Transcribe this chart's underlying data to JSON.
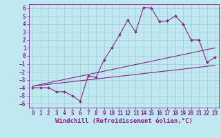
{
  "xlabel": "Windchill (Refroidissement éolien,°C)",
  "x_values": [
    0,
    1,
    2,
    3,
    4,
    5,
    6,
    7,
    8,
    9,
    10,
    11,
    12,
    13,
    14,
    15,
    16,
    17,
    18,
    19,
    20,
    21,
    22,
    23
  ],
  "main_y": [
    -4,
    -4,
    -4,
    -4.5,
    -4.5,
    -5,
    -5.7,
    -2.5,
    -2.7,
    -0.5,
    1.0,
    2.7,
    4.5,
    3.0,
    6.1,
    6.0,
    4.3,
    4.4,
    5.0,
    4.0,
    2.0,
    2.0,
    -0.8,
    -0.2
  ],
  "line1_x": [
    0,
    23
  ],
  "line1_y": [
    -3.8,
    1.0
  ],
  "line2_x": [
    0,
    23
  ],
  "line2_y": [
    -3.8,
    -1.2
  ],
  "bg_color": "#c0e8f0",
  "grid_color": "#a8d0d8",
  "line_color": "#882288",
  "ylim": [
    -6.5,
    6.5
  ],
  "xlim": [
    -0.5,
    23.5
  ],
  "yticks": [
    6,
    5,
    4,
    3,
    2,
    1,
    0,
    -1,
    -2,
    -3,
    -4,
    -5,
    -6
  ],
  "xticks": [
    0,
    1,
    2,
    3,
    4,
    5,
    6,
    7,
    8,
    9,
    10,
    11,
    12,
    13,
    14,
    15,
    16,
    17,
    18,
    19,
    20,
    21,
    22,
    23
  ],
  "tick_fontsize": 5.5,
  "label_fontsize": 6.5
}
